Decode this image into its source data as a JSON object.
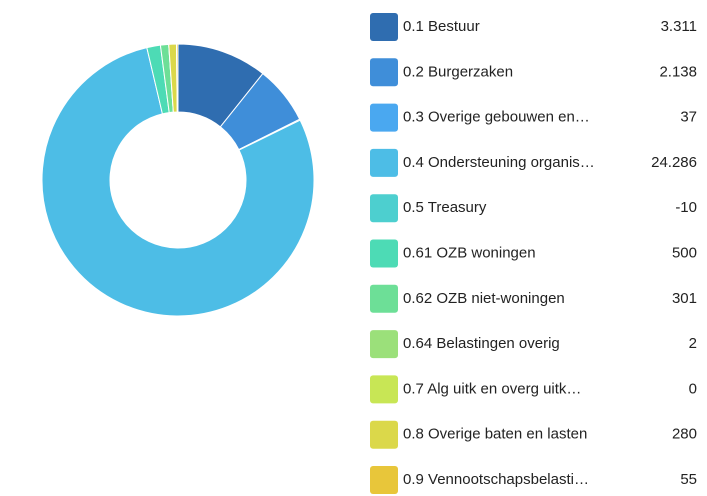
{
  "chart_data": {
    "type": "donut",
    "categories": [
      "0.1 Bestuur",
      "0.2 Burgerzaken",
      "0.3 Overige gebouwen en…",
      "0.4 Ondersteuning organis…",
      "0.5 Treasury",
      "0.61 OZB woningen",
      "0.62 OZB niet-woningen",
      "0.64 Belastingen overig",
      "0.7 Alg uitk en overg uitk…",
      "0.8 Overige baten en lasten",
      "0.9 Vennootschapsbelasti…"
    ],
    "values": [
      3311,
      2138,
      37,
      24286,
      -10,
      500,
      301,
      2,
      0,
      280,
      55
    ],
    "value_labels": [
      "3.311",
      "2.138",
      "37",
      "24.286",
      "-10",
      "500",
      "301",
      "2",
      "0",
      "280",
      "55"
    ],
    "colors": [
      "#2f6db0",
      "#3f8ed9",
      "#4aa8f0",
      "#4dbde6",
      "#4dcfcf",
      "#4ddbb5",
      "#6ddf97",
      "#9be07a",
      "#c8e655",
      "#dbd84a",
      "#e8c63a"
    ],
    "legend": "right"
  }
}
